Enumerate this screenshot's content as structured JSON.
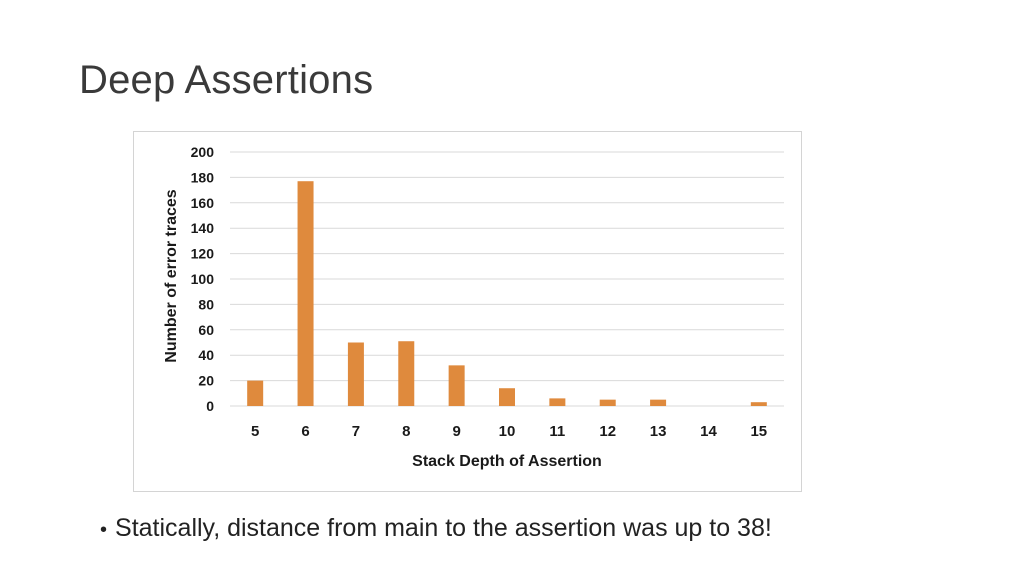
{
  "slide": {
    "title": "Deep Assertions",
    "bullet": "Statically, distance from main to the assertion was up to 38!"
  },
  "colors": {
    "bar": "#df8a3d",
    "grid": "#d9d9d9",
    "axis_text": "#1a1a1a"
  },
  "chart_data": {
    "type": "bar",
    "title": "",
    "xlabel": "Stack Depth of Assertion",
    "ylabel": "Number of error traces",
    "categories": [
      "5",
      "6",
      "7",
      "8",
      "9",
      "10",
      "11",
      "12",
      "13",
      "14",
      "15"
    ],
    "values": [
      20,
      177,
      50,
      51,
      32,
      14,
      6,
      5,
      5,
      0,
      3
    ],
    "ylim": [
      0,
      200
    ],
    "yticks": [
      0,
      20,
      40,
      60,
      80,
      100,
      120,
      140,
      160,
      180,
      200
    ],
    "grid": true,
    "legend": "none"
  }
}
